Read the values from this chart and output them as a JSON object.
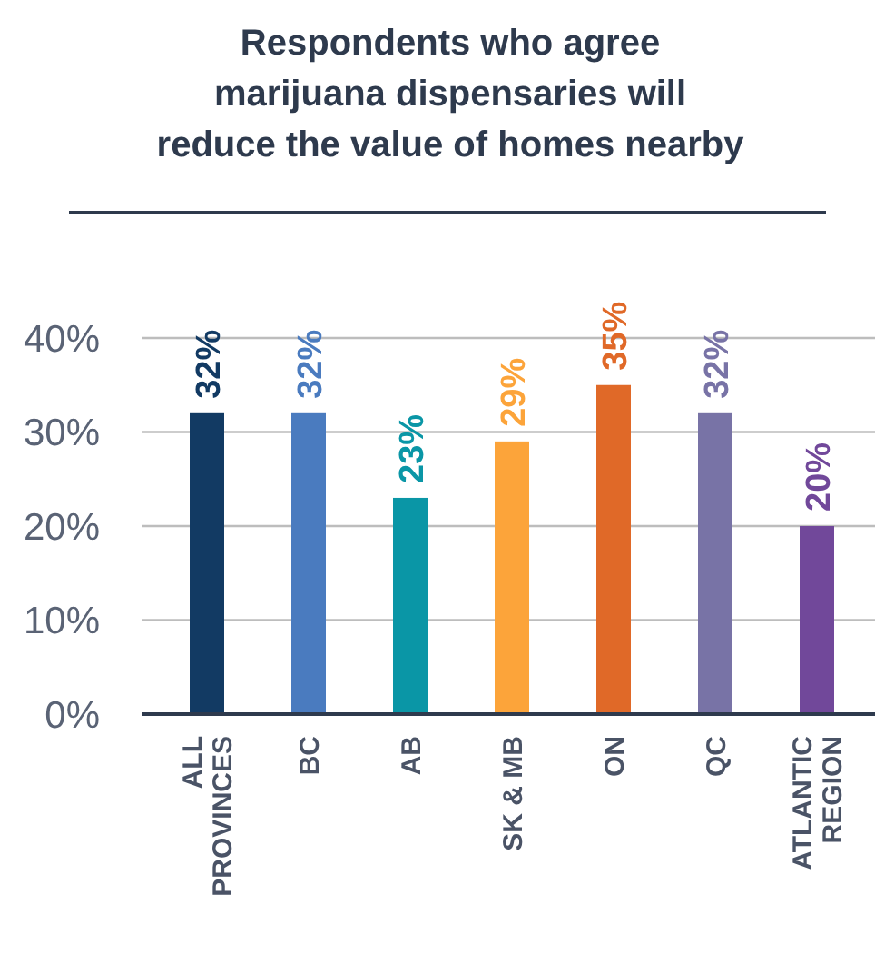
{
  "chart_data": {
    "type": "bar",
    "title": "Respondents who agree\nmarijuana dispensaries will\nreduce the value of homes nearby",
    "categories": [
      "ALL\nPROVINCES",
      "BC",
      "AB",
      "SK & MB",
      "ON",
      "QC",
      "ATLANTIC\nREGION"
    ],
    "values": [
      32,
      32,
      23,
      29,
      35,
      32,
      20
    ],
    "colors": [
      "#123a63",
      "#4a7bbf",
      "#0a96a6",
      "#fca43a",
      "#e06928",
      "#7873a6",
      "#71489a"
    ],
    "value_labels": [
      "32%",
      "32%",
      "23%",
      "29%",
      "35%",
      "32%",
      "20%"
    ],
    "ylim": [
      0,
      40
    ],
    "yticks": [
      {
        "value": 0,
        "label": "0%"
      },
      {
        "value": 10,
        "label": "10%"
      },
      {
        "value": 20,
        "label": "20%"
      },
      {
        "value": 30,
        "label": "30%"
      },
      {
        "value": 40,
        "label": "40%"
      }
    ],
    "grid": "y"
  }
}
